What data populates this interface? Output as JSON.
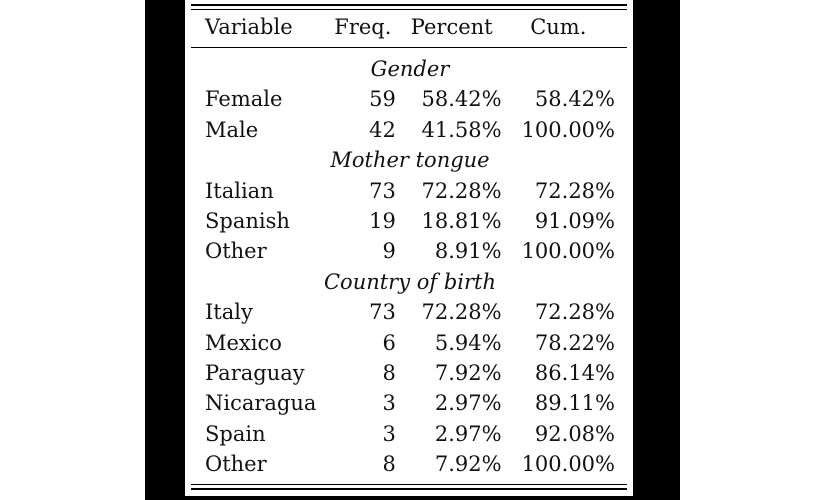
{
  "table": {
    "headers": [
      "Variable",
      "Freq.",
      "Percent",
      "Cum."
    ],
    "groups": [
      {
        "title": "Gender",
        "rows": [
          [
            "Female",
            "59",
            "58.42%",
            "58.42%"
          ],
          [
            "Male",
            "42",
            "41.58%",
            "100.00%"
          ]
        ]
      },
      {
        "title": "Mother tongue",
        "rows": [
          [
            "Italian",
            "73",
            "72.28%",
            "72.28%"
          ],
          [
            "Spanish",
            "19",
            "18.81%",
            "91.09%"
          ],
          [
            "Other",
            "9",
            "8.91%",
            "100.00%"
          ]
        ]
      },
      {
        "title": "Country of birth",
        "rows": [
          [
            "Italy",
            "73",
            "72.28%",
            "72.28%"
          ],
          [
            "Mexico",
            "6",
            "5.94%",
            "78.22%"
          ],
          [
            "Paraguay",
            "8",
            "7.92%",
            "86.14%"
          ],
          [
            "Nicaragua",
            "3",
            "2.97%",
            "89.11%"
          ],
          [
            "Spain",
            "3",
            "2.97%",
            "92.08%"
          ],
          [
            "Other",
            "8",
            "7.92%",
            "100.00%"
          ]
        ]
      }
    ]
  }
}
